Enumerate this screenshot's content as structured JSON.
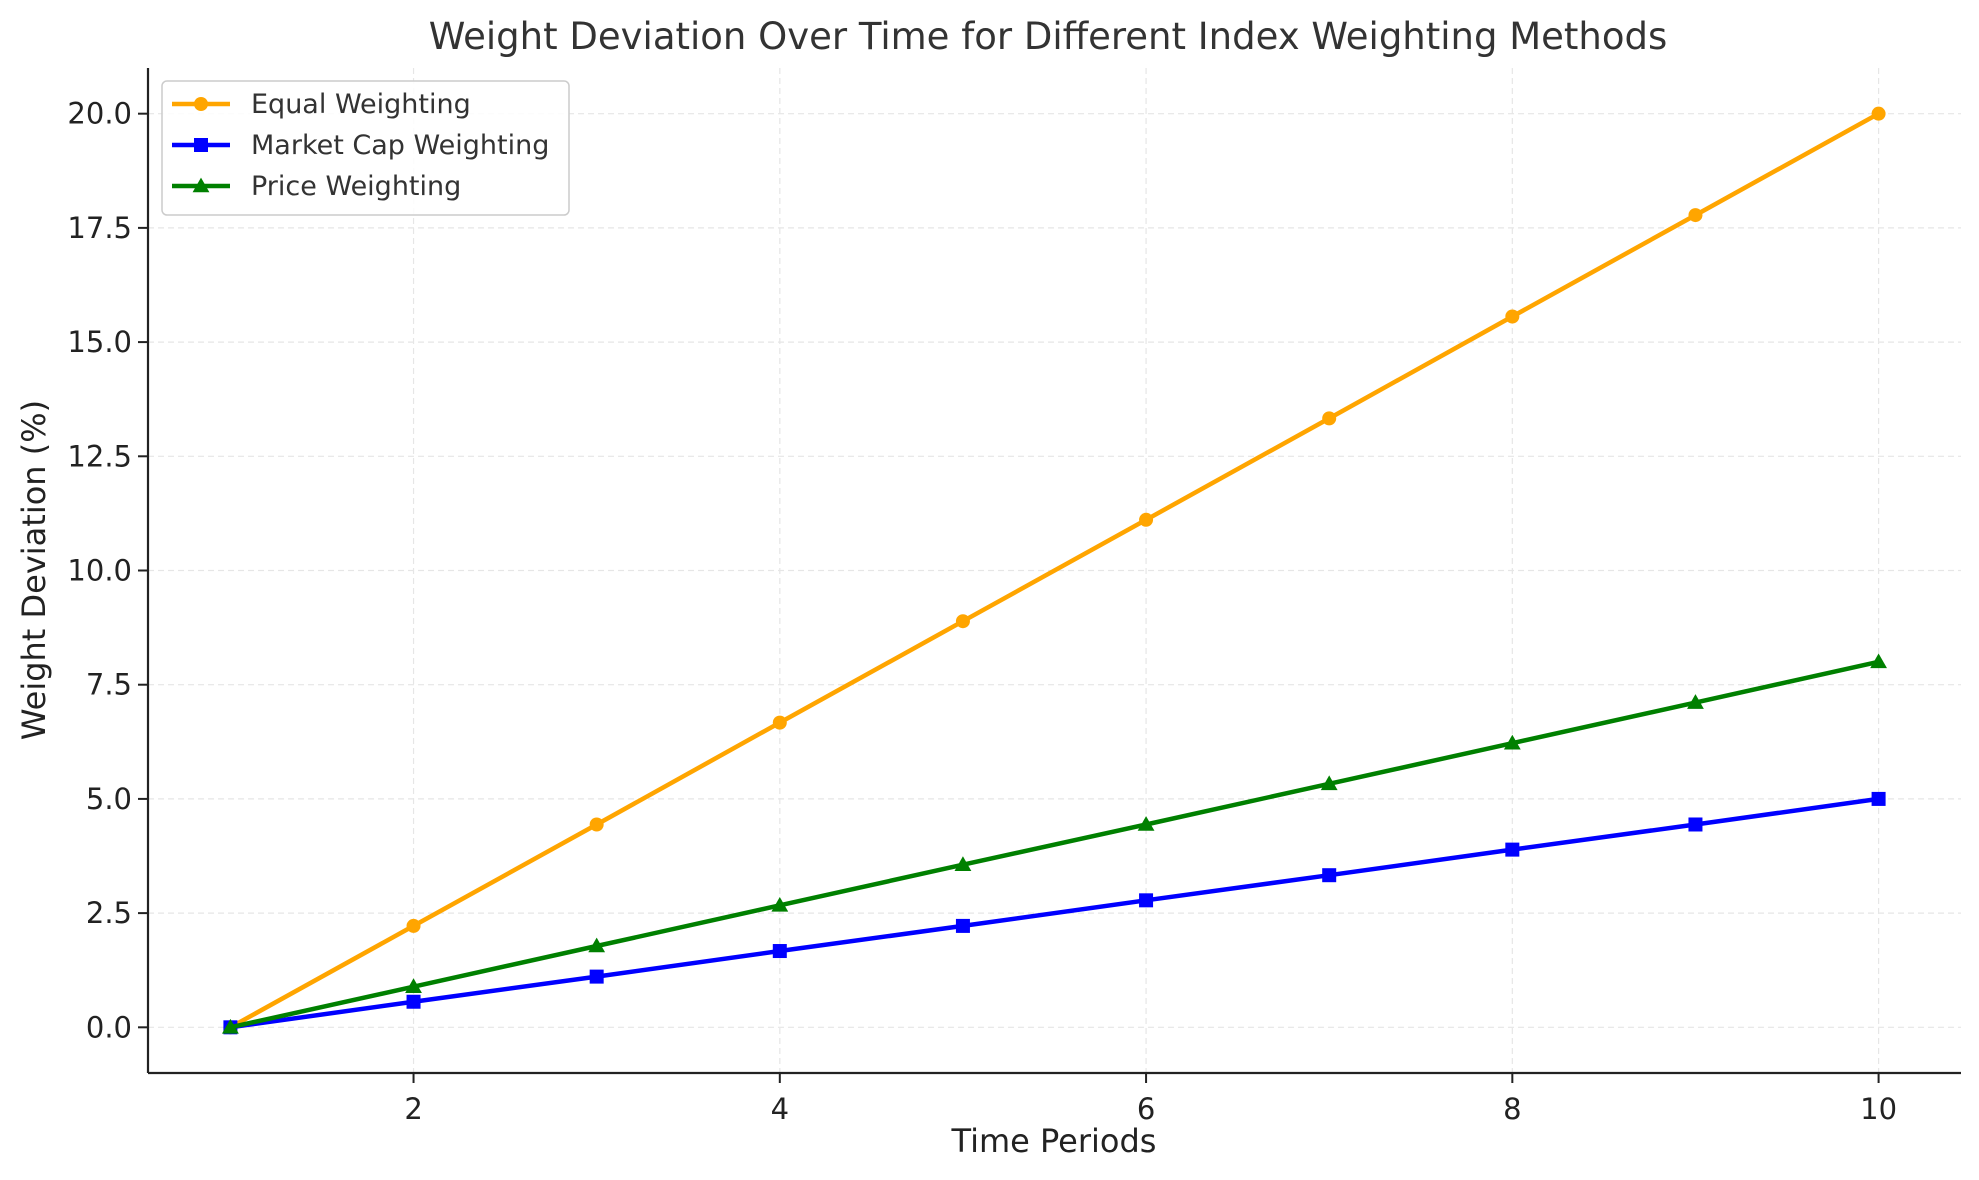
{
  "chart_data": {
    "type": "line",
    "title": "Weight Deviation Over Time for Different Index Weighting Methods",
    "xlabel": "Time Periods",
    "ylabel": "Weight Deviation (%)",
    "x": [
      1,
      2,
      3,
      4,
      5,
      6,
      7,
      8,
      9,
      10
    ],
    "xlim": [
      0.55,
      10.45
    ],
    "ylim": [
      -1.0,
      21.0
    ],
    "xticks": [
      2,
      4,
      6,
      8,
      10
    ],
    "xtick_labels": [
      "2",
      "4",
      "6",
      "8",
      "10"
    ],
    "yticks": [
      0,
      2.5,
      5,
      7.5,
      10,
      12.5,
      15,
      17.5,
      20
    ],
    "ytick_labels": [
      "0.0",
      "2.5",
      "5.0",
      "7.5",
      "10.0",
      "12.5",
      "15.0",
      "17.5",
      "20.0"
    ],
    "grid": true,
    "legend_position": "top-left",
    "series": [
      {
        "name": "Equal Weighting",
        "color": "#ffa500",
        "marker": "circle",
        "values": [
          0,
          2.22,
          4.44,
          6.67,
          8.89,
          11.11,
          13.33,
          15.56,
          17.78,
          20.0
        ]
      },
      {
        "name": "Market Cap Weighting",
        "color": "#0000ff",
        "marker": "square",
        "values": [
          0,
          0.56,
          1.11,
          1.67,
          2.22,
          2.78,
          3.33,
          3.89,
          4.44,
          5.0
        ]
      },
      {
        "name": "Price Weighting",
        "color": "#008000",
        "marker": "triangle",
        "values": [
          0,
          0.89,
          1.78,
          2.67,
          3.56,
          4.44,
          5.33,
          6.22,
          7.11,
          8.0
        ]
      }
    ]
  }
}
